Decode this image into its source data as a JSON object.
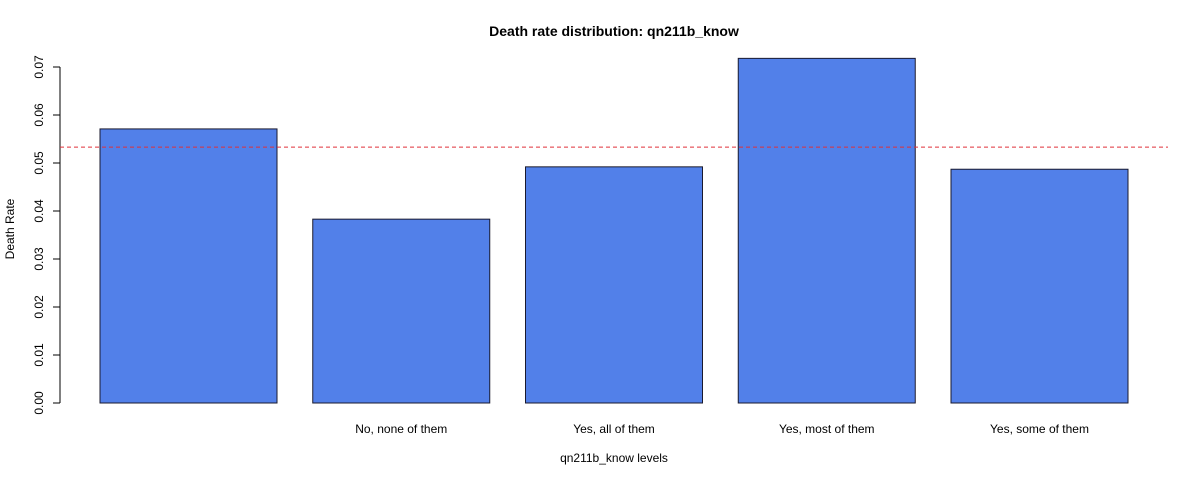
{
  "chart_data": {
    "type": "bar",
    "title": "Death rate distribution: qn211b_know",
    "xlabel": "qn211b_know levels",
    "ylabel": "Death Rate",
    "categories": [
      "",
      "No, none of them",
      "Yes, all of them",
      "Yes, most of them",
      "Yes, some of them"
    ],
    "values": [
      0.0571,
      0.0383,
      0.0492,
      0.0718,
      0.0487
    ],
    "ylim": [
      0,
      0.07
    ],
    "yticks": [
      "0.00",
      "0.01",
      "0.02",
      "0.03",
      "0.04",
      "0.05",
      "0.06",
      "0.07"
    ],
    "reference_line": 0.0533,
    "grid": false,
    "legend": "none",
    "colors": {
      "bar_fill": "#5280e9",
      "bar_stroke": "#1a1a2e",
      "reference_line": "#e0303a",
      "axis": "#000000"
    }
  }
}
